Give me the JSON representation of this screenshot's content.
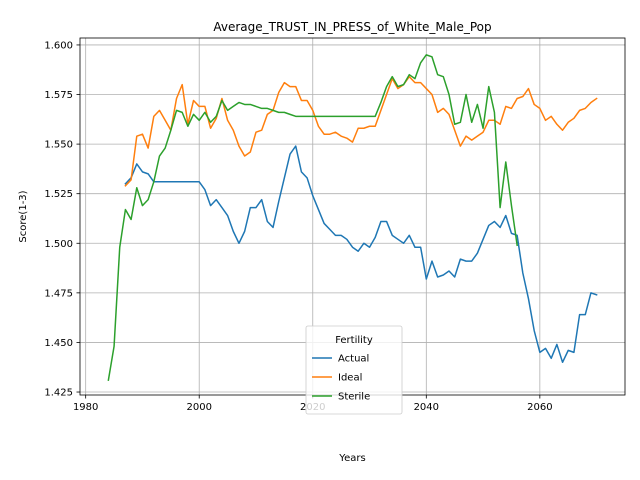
{
  "chart_data": {
    "type": "line",
    "title": "Average_TRUST_IN_PRESS_of_White_Male_Pop",
    "xlabel": "Years",
    "ylabel": "Score(1-3)",
    "xlim": [
      1979,
      2075
    ],
    "ylim": [
      1.4235,
      1.6035
    ],
    "xticks": [
      1980,
      2000,
      2020,
      2040,
      2060
    ],
    "yticks": [
      1.425,
      1.45,
      1.475,
      1.5,
      1.525,
      1.55,
      1.575,
      1.6
    ],
    "ytick_labels": [
      "1.425",
      "1.450",
      "1.475",
      "1.500",
      "1.525",
      "1.550",
      "1.575",
      "1.600"
    ],
    "grid": true,
    "legend": {
      "title": "Fertility",
      "placement": "lower-center"
    },
    "series": [
      {
        "name": "Actual",
        "color": "#1f77b4",
        "x": [
          1987,
          1988,
          1989,
          1990,
          1991,
          1992,
          1993,
          1994,
          1995,
          1996,
          1997,
          1998,
          1999,
          2000,
          2001,
          2002,
          2003,
          2004,
          2005,
          2006,
          2007,
          2008,
          2009,
          2010,
          2011,
          2012,
          2013,
          2014,
          2015,
          2016,
          2017,
          2018,
          2019,
          2020,
          2021,
          2022,
          2023,
          2024,
          2025,
          2026,
          2027,
          2028,
          2029,
          2030,
          2031,
          2032,
          2033,
          2034,
          2035,
          2036,
          2037,
          2038,
          2039,
          2040,
          2041,
          2042,
          2043,
          2044,
          2045,
          2046,
          2047,
          2048,
          2049,
          2050,
          2051,
          2052,
          2053,
          2054,
          2055,
          2056,
          2057,
          2058,
          2059,
          2060,
          2061,
          2062,
          2063,
          2064,
          2065,
          2066,
          2067,
          2068,
          2069,
          2070
        ],
        "values": [
          1.53,
          1.533,
          1.54,
          1.536,
          1.535,
          1.531,
          1.531,
          1.531,
          1.531,
          1.531,
          1.531,
          1.531,
          1.531,
          1.531,
          1.527,
          1.519,
          1.522,
          1.518,
          1.514,
          1.506,
          1.5,
          1.506,
          1.518,
          1.518,
          1.522,
          1.511,
          1.508,
          1.521,
          1.533,
          1.545,
          1.549,
          1.536,
          1.533,
          1.524,
          1.517,
          1.51,
          1.507,
          1.504,
          1.504,
          1.502,
          1.498,
          1.496,
          1.5,
          1.498,
          1.503,
          1.511,
          1.511,
          1.504,
          1.502,
          1.5,
          1.504,
          1.498,
          1.498,
          1.482,
          1.491,
          1.483,
          1.484,
          1.486,
          1.483,
          1.492,
          1.491,
          1.491,
          1.495,
          1.502,
          1.509,
          1.511,
          1.508,
          1.514,
          1.505,
          1.504,
          1.485,
          1.472,
          1.456,
          1.445,
          1.447,
          1.442,
          1.449,
          1.44,
          1.446,
          1.445,
          1.464,
          1.464,
          1.475,
          1.474
        ]
      },
      {
        "name": "Ideal",
        "color": "#ff7f0e",
        "x": [
          1987,
          1988,
          1989,
          1990,
          1991,
          1992,
          1993,
          1994,
          1995,
          1996,
          1997,
          1998,
          1999,
          2000,
          2001,
          2002,
          2003,
          2004,
          2005,
          2006,
          2007,
          2008,
          2009,
          2010,
          2011,
          2012,
          2013,
          2014,
          2015,
          2016,
          2017,
          2018,
          2019,
          2020,
          2021,
          2022,
          2023,
          2024,
          2025,
          2026,
          2027,
          2028,
          2029,
          2030,
          2031,
          2032,
          2033,
          2034,
          2035,
          2036,
          2037,
          2038,
          2039,
          2040,
          2041,
          2042,
          2043,
          2044,
          2045,
          2046,
          2047,
          2048,
          2049,
          2050,
          2051,
          2052,
          2053,
          2054,
          2055,
          2056,
          2057,
          2058,
          2059,
          2060,
          2061,
          2062,
          2063,
          2064,
          2065,
          2066,
          2067,
          2068,
          2069,
          2070
        ],
        "values": [
          1.529,
          1.532,
          1.554,
          1.555,
          1.548,
          1.564,
          1.567,
          1.562,
          1.557,
          1.573,
          1.58,
          1.56,
          1.572,
          1.569,
          1.569,
          1.558,
          1.563,
          1.573,
          1.562,
          1.557,
          1.549,
          1.544,
          1.546,
          1.556,
          1.557,
          1.565,
          1.567,
          1.576,
          1.581,
          1.579,
          1.579,
          1.572,
          1.572,
          1.567,
          1.559,
          1.555,
          1.555,
          1.556,
          1.554,
          1.553,
          1.551,
          1.558,
          1.558,
          1.559,
          1.559,
          1.567,
          1.575,
          1.583,
          1.578,
          1.58,
          1.584,
          1.581,
          1.581,
          1.578,
          1.575,
          1.566,
          1.568,
          1.565,
          1.557,
          1.549,
          1.554,
          1.552,
          1.554,
          1.556,
          1.562,
          1.562,
          1.56,
          1.569,
          1.568,
          1.573,
          1.574,
          1.578,
          1.57,
          1.568,
          1.562,
          1.564,
          1.56,
          1.557,
          1.561,
          1.563,
          1.567,
          1.568,
          1.571,
          1.573
        ]
      },
      {
        "name": "Sterile",
        "color": "#2ca02c",
        "x": [
          1984,
          1985,
          1986,
          1987,
          1988,
          1989,
          1990,
          1991,
          1992,
          1993,
          1994,
          1995,
          1996,
          1997,
          1998,
          1999,
          2000,
          2001,
          2002,
          2003,
          2004,
          2005,
          2006,
          2007,
          2008,
          2009,
          2010,
          2011,
          2012,
          2013,
          2014,
          2015,
          2016,
          2017,
          2018,
          2019,
          2020,
          2021,
          2022,
          2023,
          2024,
          2025,
          2026,
          2027,
          2028,
          2029,
          2030,
          2031,
          2032,
          2033,
          2034,
          2035,
          2036,
          2037,
          2038,
          2039,
          2040,
          2041,
          2042,
          2043,
          2044,
          2045,
          2046,
          2047,
          2048,
          2049,
          2050,
          2051,
          2052,
          2053,
          2054,
          2055,
          2056
        ],
        "values": [
          1.431,
          1.448,
          1.498,
          1.517,
          1.512,
          1.528,
          1.519,
          1.522,
          1.531,
          1.544,
          1.548,
          1.557,
          1.567,
          1.566,
          1.559,
          1.565,
          1.562,
          1.566,
          1.561,
          1.564,
          1.572,
          1.567,
          1.569,
          1.571,
          1.57,
          1.57,
          1.569,
          1.568,
          1.568,
          1.567,
          1.566,
          1.566,
          1.565,
          1.564,
          1.564,
          1.564,
          1.564,
          1.564,
          1.564,
          1.564,
          1.564,
          1.564,
          1.564,
          1.564,
          1.564,
          1.564,
          1.564,
          1.564,
          1.571,
          1.579,
          1.584,
          1.579,
          1.58,
          1.585,
          1.583,
          1.591,
          1.595,
          1.594,
          1.585,
          1.584,
          1.575,
          1.56,
          1.561,
          1.575,
          1.561,
          1.57,
          1.558,
          1.579,
          1.566,
          1.518,
          1.541,
          1.519,
          1.499
        ]
      }
    ]
  }
}
